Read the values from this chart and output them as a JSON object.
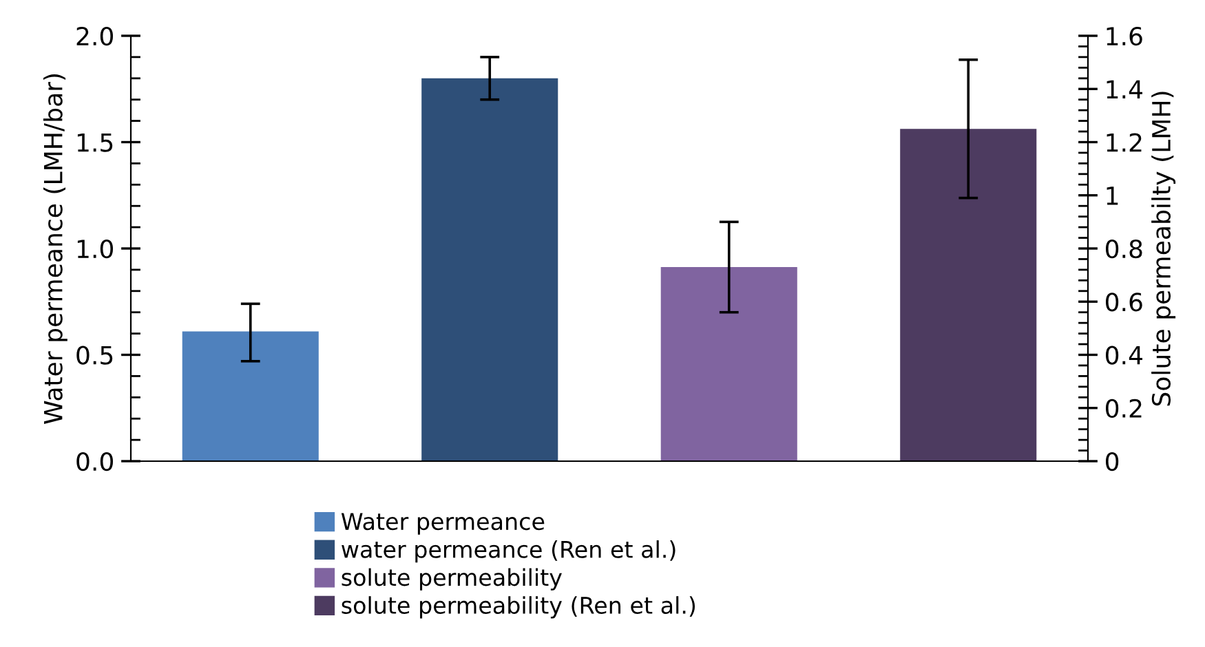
{
  "chart_data": {
    "type": "bar",
    "categories": [
      null,
      null,
      null,
      null
    ],
    "ylabel": "Water permeance (LMH/bar)",
    "y2label": "Solute permeabilty (LMH)",
    "ylim": [
      0,
      2.0
    ],
    "yticks": [
      {
        "value": 0,
        "label": "0.0"
      },
      {
        "value": 0.5,
        "label": "0.5"
      },
      {
        "value": 1.0,
        "label": "1.0"
      },
      {
        "value": 1.5,
        "label": "1.5"
      },
      {
        "value": 2.0,
        "label": "2.0"
      }
    ],
    "y2lim": [
      0,
      1.6
    ],
    "y2ticks": [
      0,
      0.2,
      0.4,
      0.6,
      0.8,
      1,
      1.2,
      1.4,
      1.6
    ],
    "series": [
      {
        "name": "Water permeance",
        "color": "#4f81bd",
        "values": [
          0.61,
          null,
          null,
          null
        ],
        "errors": [
          [
            0.47,
            0.74
          ],
          null,
          null,
          null
        ]
      },
      {
        "name": "water permeance (Ren et al.)",
        "color": "#2e4f78",
        "values": [
          null,
          1.8,
          null,
          null
        ],
        "errors": [
          null,
          [
            1.7,
            1.9
          ],
          null,
          null
        ]
      },
      {
        "name": "solute permeability",
        "color": "#8064a0",
        "values": [
          null,
          null,
          0.73,
          null
        ],
        "errors": [
          null,
          null,
          [
            0.56,
            0.9
          ],
          null
        ],
        "axis": "y2"
      },
      {
        "name": "solute permeability (Ren et al.)",
        "color": "#4d3b60",
        "values": [
          null,
          null,
          null,
          1.25
        ],
        "errors": [
          null,
          null,
          null,
          [
            0.99,
            1.51
          ]
        ],
        "axis": "y2"
      }
    ],
    "legend": "bottom",
    "grid": false
  }
}
